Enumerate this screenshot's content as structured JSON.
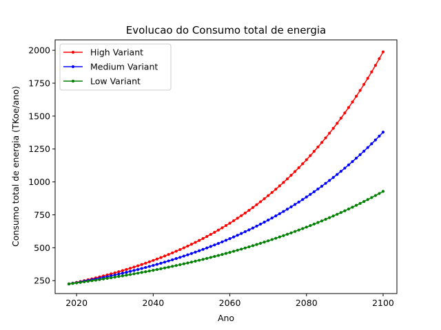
{
  "chart_data": {
    "type": "line",
    "title": "Evolucao do Consumo total de energia",
    "xlabel": "Ano",
    "ylabel": "Consumo total de energia (TKoe/ano)",
    "xlim": [
      2014.4,
      2103.6
    ],
    "ylim": [
      152,
      2079
    ],
    "xticks": [
      2020,
      2040,
      2060,
      2080,
      2100
    ],
    "yticks": [
      250,
      500,
      750,
      1000,
      1250,
      1500,
      1750,
      2000
    ],
    "grid": false,
    "legend_position": "top-left",
    "x_start": 2018,
    "x_end": 2100,
    "series": [
      {
        "name": "High Variant",
        "color": "#ff0000",
        "start": 225,
        "end": 1988
      },
      {
        "name": "Medium Variant",
        "color": "#0000ff",
        "start": 225,
        "end": 1378
      },
      {
        "name": "Low Variant",
        "color": "#008000",
        "start": 225,
        "end": 928
      }
    ]
  }
}
